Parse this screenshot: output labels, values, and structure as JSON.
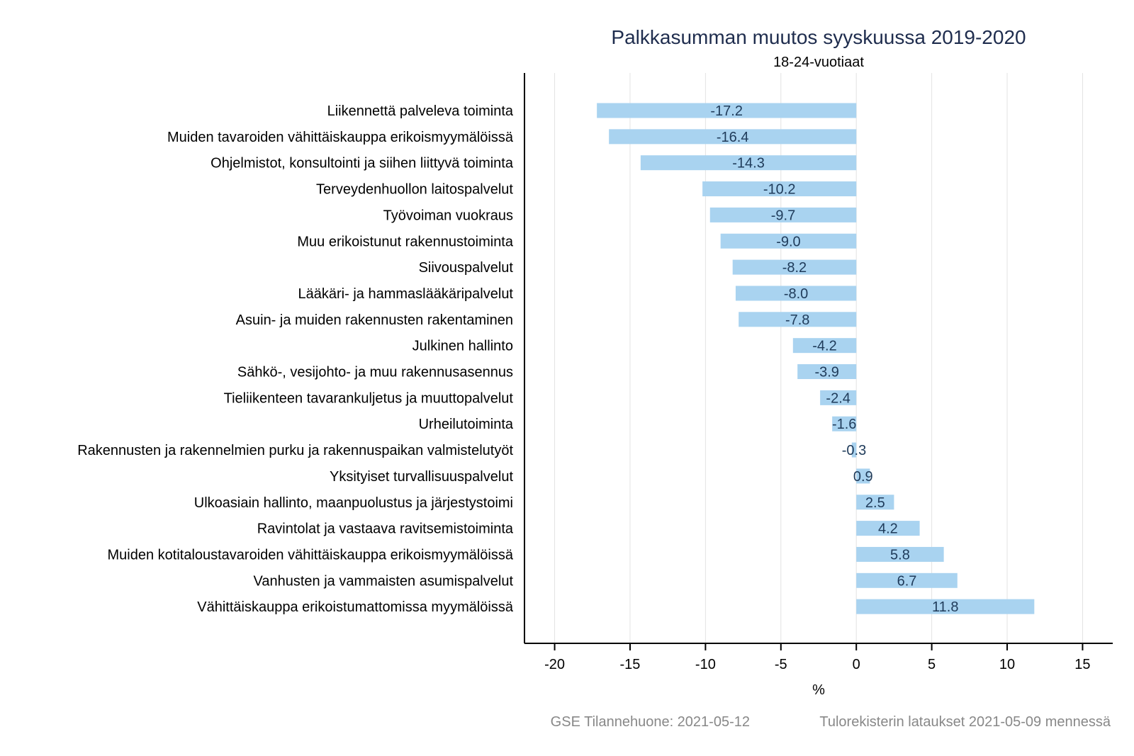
{
  "chart_data": {
    "type": "bar",
    "orientation": "horizontal",
    "title": "Palkkasumman muutos syyskuussa 2019-2020",
    "subtitle": "18-24-vuotiaat",
    "xlabel": "%",
    "ylabel": "",
    "xlim": [
      -22,
      17
    ],
    "xticks": [
      -20,
      -15,
      -10,
      -5,
      0,
      5,
      10,
      15
    ],
    "xtick_labels": [
      "-20",
      "-15",
      "-10",
      "-5",
      "0",
      "5",
      "10",
      "15"
    ],
    "grid": "vertical",
    "bar_color": "#a9d3f0",
    "categories": [
      "Liikennettä palveleva toiminta",
      "Muiden tavaroiden vähittäiskauppa erikoismyymälöissä",
      "Ohjelmistot, konsultointi ja siihen liittyvä toiminta",
      "Terveydenhuollon laitospalvelut",
      "Työvoiman vuokraus",
      "Muu erikoistunut rakennustoiminta",
      "Siivouspalvelut",
      "Lääkäri- ja hammaslääkäripalvelut",
      "Asuin- ja muiden rakennusten rakentaminen",
      "Julkinen hallinto",
      "Sähkö-, vesijohto- ja muu rakennusasennus",
      "Tieliikenteen tavarankuljetus ja muuttopalvelut",
      "Urheilutoiminta",
      "Rakennusten ja rakennelmien purku ja rakennuspaikan valmistelutyöt",
      "Yksityiset turvallisuuspalvelut",
      "Ulkoasiain hallinto, maanpuolustus ja järjestystoimi",
      "Ravintolat ja vastaava ravitsemistoiminta",
      "Muiden kotitaloustavaroiden vähittäiskauppa erikoismyymälöissä",
      "Vanhusten ja vammaisten asumispalvelut",
      "Vähittäiskauppa erikoistumattomissa myymälöissä"
    ],
    "values": [
      -17.2,
      -16.4,
      -14.3,
      -10.2,
      -9.7,
      -9.0,
      -8.2,
      -8.0,
      -7.8,
      -4.2,
      -3.9,
      -2.4,
      -1.6,
      -0.3,
      0.9,
      2.5,
      4.2,
      5.8,
      6.7,
      11.8
    ],
    "value_labels": [
      "-17.2",
      "-16.4",
      "-14.3",
      "-10.2",
      "-9.7",
      "-9.0",
      "-8.2",
      "-8.0",
      "-7.8",
      "-4.2",
      "-3.9",
      "-2.4",
      "-1.6",
      "-0.3",
      "0.9",
      "2.5",
      "4.2",
      "5.8",
      "6.7",
      "11.8"
    ]
  },
  "footer": {
    "source_left": "GSE Tilannehuone: 2021-05-12",
    "source_right": "Tulorekisterin lataukset 2021-05-09 mennessä"
  }
}
